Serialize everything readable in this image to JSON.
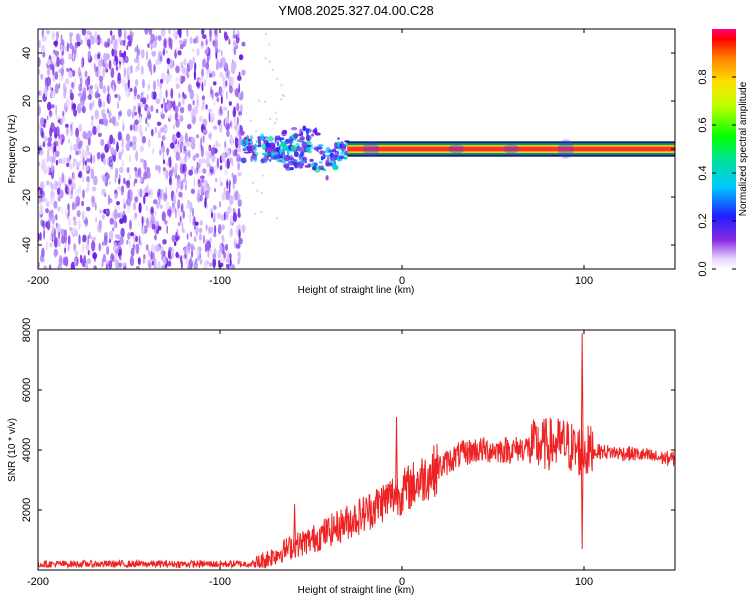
{
  "title": "YM08.2025.327.04.00.C28",
  "chart_data": [
    {
      "type": "heatmap",
      "xlabel": "Height of straight line (km)",
      "ylabel": "Frequency (Hz)",
      "xlim": [
        -200,
        150
      ],
      "ylim": [
        -50,
        50
      ],
      "xticks": [
        -200,
        -100,
        0,
        100
      ],
      "yticks": [
        40,
        20,
        0,
        -20,
        -40
      ],
      "regions": [
        {
          "name": "broadband noise",
          "x_range": [
            -200,
            -87
          ],
          "freq_range": [
            -50,
            50
          ],
          "amplitude": "0.1-0.2"
        },
        {
          "name": "transition patches",
          "x_range": [
            -87,
            -30
          ],
          "freq_range": [
            -15,
            8
          ],
          "amplitude": "0.2-0.5"
        },
        {
          "name": "carrier line",
          "x_range": [
            -30,
            150
          ],
          "freq": 0,
          "amplitude": "~1.0"
        }
      ],
      "colorbar": {
        "label": "Normalized spectral amplitude",
        "range": [
          0,
          1
        ],
        "ticks": [
          "0.0",
          "0.2",
          "0.4",
          "0.6",
          "0.8"
        ]
      }
    },
    {
      "type": "line",
      "xlabel": "Height of straight line (km)",
      "ylabel": "SNR (10 * v/v)",
      "xlim": [
        -200,
        150
      ],
      "ylim": [
        0,
        8000
      ],
      "xticks": [
        -200,
        -100,
        0,
        100
      ],
      "yticks": [
        2000,
        4000,
        6000,
        8000
      ],
      "color": "#ee2222",
      "x": [
        -200,
        -150,
        -100,
        -80,
        -75,
        -60,
        -50,
        -40,
        -30,
        -20,
        -10,
        -5,
        0,
        10,
        20,
        30,
        40,
        50,
        60,
        70,
        80,
        90,
        95,
        100,
        110,
        120,
        130,
        140,
        150
      ],
      "y": [
        200,
        200,
        200,
        200,
        350,
        800,
        1000,
        1300,
        1600,
        1900,
        2300,
        2500,
        2600,
        3000,
        3400,
        3800,
        4000,
        4000,
        4000,
        4100,
        4200,
        4200,
        4000,
        3950,
        3950,
        3900,
        3850,
        3750,
        3700
      ],
      "spikes": [
        {
          "x": -59,
          "y": 2200
        },
        {
          "x": -3,
          "y": 5100
        },
        {
          "x": 99,
          "y": 7900
        },
        {
          "x": 99,
          "y": 700
        }
      ]
    }
  ]
}
